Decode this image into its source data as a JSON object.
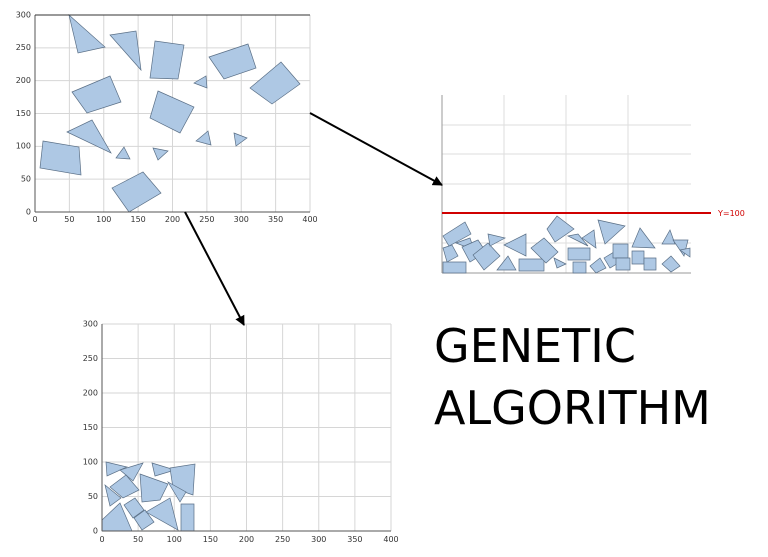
{
  "plots": [
    {
      "xticks": [
        0,
        50,
        100,
        150,
        200,
        250,
        300,
        350,
        400
      ],
      "yticks": [
        0,
        50,
        100,
        150,
        200,
        250,
        300
      ]
    },
    {
      "xticks": [
        0,
        50,
        100,
        150,
        200,
        250,
        300,
        350,
        400
      ],
      "yticks": [
        0,
        50,
        100,
        150,
        200,
        250,
        300
      ]
    }
  ],
  "threshold_label": "Y=100",
  "title_lines": [
    "GENETIC",
    "ALGORITHM"
  ]
}
